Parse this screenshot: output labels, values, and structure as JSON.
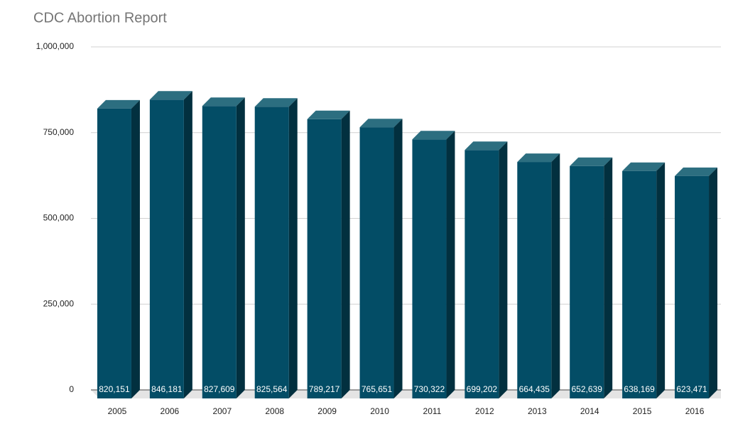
{
  "chart_data": {
    "type": "bar3d",
    "title": "CDC Abortion Report",
    "categories": [
      "2005",
      "2006",
      "2007",
      "2008",
      "2009",
      "2010",
      "2011",
      "2012",
      "2013",
      "2014",
      "2015",
      "2016"
    ],
    "values": [
      820151,
      846181,
      827609,
      825564,
      789217,
      765651,
      730322,
      699202,
      664435,
      652639,
      638169,
      623471
    ],
    "value_labels": [
      "820,151",
      "846,181",
      "827,609",
      "825,564",
      "789,217",
      "765,651",
      "730,322",
      "699,202",
      "664,435",
      "652,639",
      "638,169",
      "623,471"
    ],
    "color": "#034d66",
    "ylim": [
      0,
      1000000
    ],
    "yticks": [
      0,
      {
        "value": 250000,
        "label": "250,000"
      },
      {
        "value": 500000,
        "label": "500,000"
      },
      {
        "value": 750000,
        "label": "750,000"
      },
      {
        "value": 1000000,
        "label": "1,000,000"
      }
    ],
    "grid": true
  }
}
